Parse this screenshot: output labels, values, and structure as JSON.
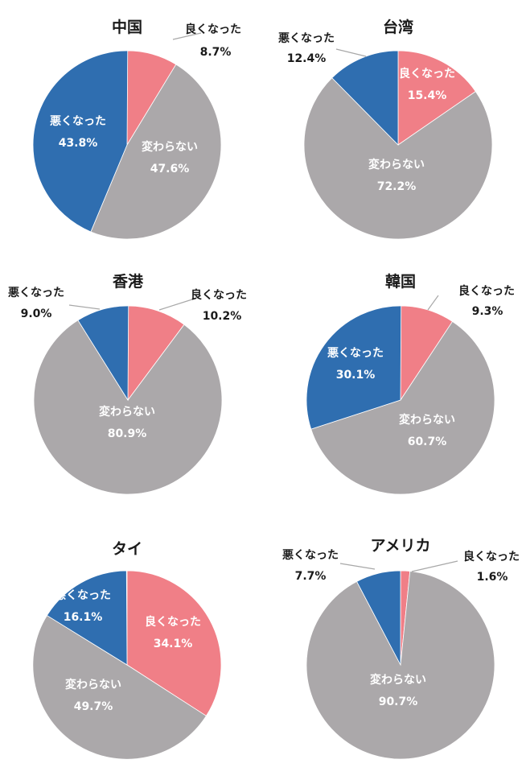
{
  "colors": {
    "good": "#F07F87",
    "same": "#ABA8AA",
    "bad": "#2F6EB0"
  },
  "chart_data": [
    {
      "type": "pie",
      "title": "中国",
      "slices": [
        {
          "label": "良くなった",
          "value": 8.7,
          "value_text": "8.7%",
          "color": "good"
        },
        {
          "label": "変わらない",
          "value": 47.6,
          "value_text": "47.6%",
          "color": "same"
        },
        {
          "label": "悪くなった",
          "value": 43.8,
          "value_text": "43.8%",
          "color": "bad"
        }
      ]
    },
    {
      "type": "pie",
      "title": "台湾",
      "slices": [
        {
          "label": "良くなった",
          "value": 15.4,
          "value_text": "15.4%",
          "color": "good"
        },
        {
          "label": "変わらない",
          "value": 72.2,
          "value_text": "72.2%",
          "color": "same"
        },
        {
          "label": "悪くなった",
          "value": 12.4,
          "value_text": "12.4%",
          "color": "bad"
        }
      ]
    },
    {
      "type": "pie",
      "title": "香港",
      "slices": [
        {
          "label": "良くなった",
          "value": 10.2,
          "value_text": "10.2%",
          "color": "good"
        },
        {
          "label": "変わらない",
          "value": 80.9,
          "value_text": "80.9%",
          "color": "same"
        },
        {
          "label": "悪くなった",
          "value": 9.0,
          "value_text": "9.0%",
          "color": "bad"
        }
      ]
    },
    {
      "type": "pie",
      "title": "韓国",
      "slices": [
        {
          "label": "良くなった",
          "value": 9.3,
          "value_text": "9.3%",
          "color": "good"
        },
        {
          "label": "変わらない",
          "value": 60.7,
          "value_text": "60.7%",
          "color": "same"
        },
        {
          "label": "悪くなった",
          "value": 30.1,
          "value_text": "30.1%",
          "color": "bad"
        }
      ]
    },
    {
      "type": "pie",
      "title": "タイ",
      "slices": [
        {
          "label": "良くなった",
          "value": 34.1,
          "value_text": "34.1%",
          "color": "good"
        },
        {
          "label": "変わらない",
          "value": 49.7,
          "value_text": "49.7%",
          "color": "same"
        },
        {
          "label": "悪くなった",
          "value": 16.1,
          "value_text": "16.1%",
          "color": "bad"
        }
      ]
    },
    {
      "type": "pie",
      "title": "アメリカ",
      "slices": [
        {
          "label": "良くなった",
          "value": 1.6,
          "value_text": "1.6%",
          "color": "good"
        },
        {
          "label": "変わらない",
          "value": 90.7,
          "value_text": "90.7%",
          "color": "same"
        },
        {
          "label": "悪くなった",
          "value": 7.7,
          "value_text": "7.7%",
          "color": "bad"
        }
      ]
    }
  ]
}
